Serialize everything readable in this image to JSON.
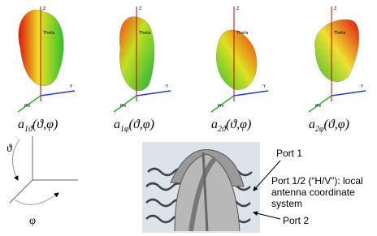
{
  "patterns": [
    {
      "base": "a",
      "sub": "1ϑ",
      "args": "(ϑ,φ)",
      "z": "Z",
      "theta": "Theta",
      "y": "Y",
      "phi": "Phi"
    },
    {
      "base": "a",
      "sub": "1φ",
      "args": "(ϑ,φ)",
      "z": "Z",
      "theta": "Theta",
      "y": "Y",
      "phi": "Phi"
    },
    {
      "base": "a",
      "sub": "2ϑ",
      "args": "(ϑ,φ)",
      "z": "Z",
      "theta": "Theta",
      "y": "Y",
      "phi": "Phi"
    },
    {
      "base": "a",
      "sub": "2φ",
      "args": "(ϑ,φ)",
      "z": "Z",
      "theta": "Theta",
      "y": "Y",
      "phi": "Phi"
    }
  ],
  "coordinates": {
    "theta": "ϑ",
    "phi": "φ"
  },
  "antenna": {
    "port1": "Port 1",
    "note": [
      "Port 1/2 (“H/V”): local",
      "antenna coordinate",
      "system"
    ],
    "port2": "Port 2"
  }
}
